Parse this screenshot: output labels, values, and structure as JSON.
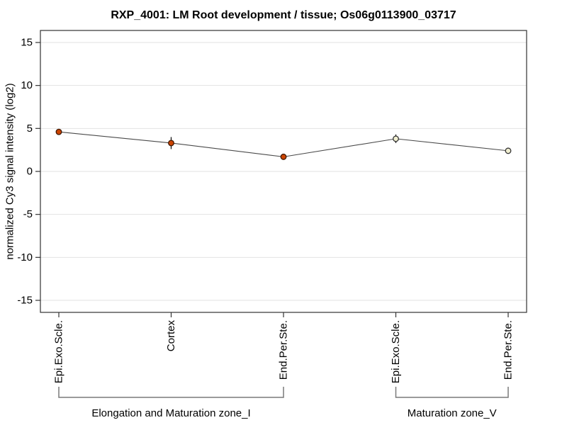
{
  "chart_data": {
    "type": "line",
    "title": "RXP_4001: LM Root development / tissue; Os06g0113900_03717",
    "xlabel": "",
    "ylabel": "normalized Cy3 signal intensity (log2)",
    "ylim": [
      -16.4,
      16.4
    ],
    "yticks": [
      -15,
      -10,
      -5,
      0,
      5,
      10,
      15
    ],
    "grid": "horizontal",
    "legend": "none",
    "categories": [
      "Epi.Exo.Scle.",
      "Cortex",
      "End.Per.Ste.",
      "Epi.Exo.Scle.",
      "End.Per.Ste."
    ],
    "series": [
      {
        "name": "Cy3 signal",
        "values": [
          4.6,
          3.3,
          1.7,
          3.8,
          2.4
        ],
        "errors": [
          0.15,
          0.7,
          0.15,
          0.5,
          0.15
        ],
        "point_styles": [
          "filled",
          "filled",
          "filled",
          "open",
          "open"
        ]
      }
    ],
    "groups": [
      {
        "label": "Elongation and Maturation zone_I",
        "from": 0,
        "to": 2
      },
      {
        "label": "Maturation zone_V",
        "from": 3,
        "to": 4
      }
    ],
    "colors": {
      "filled_point_fill": "#cc4400",
      "filled_point_stroke": "#401800",
      "open_point_fill": "#f0eed0",
      "open_point_stroke": "#333333",
      "series_line": "#4a4a4a",
      "error_bar": "#222222",
      "grid_line": "#e2e2e2",
      "axis": "#333333",
      "bracket": "#7a7a7a",
      "background": "#ffffff"
    }
  }
}
